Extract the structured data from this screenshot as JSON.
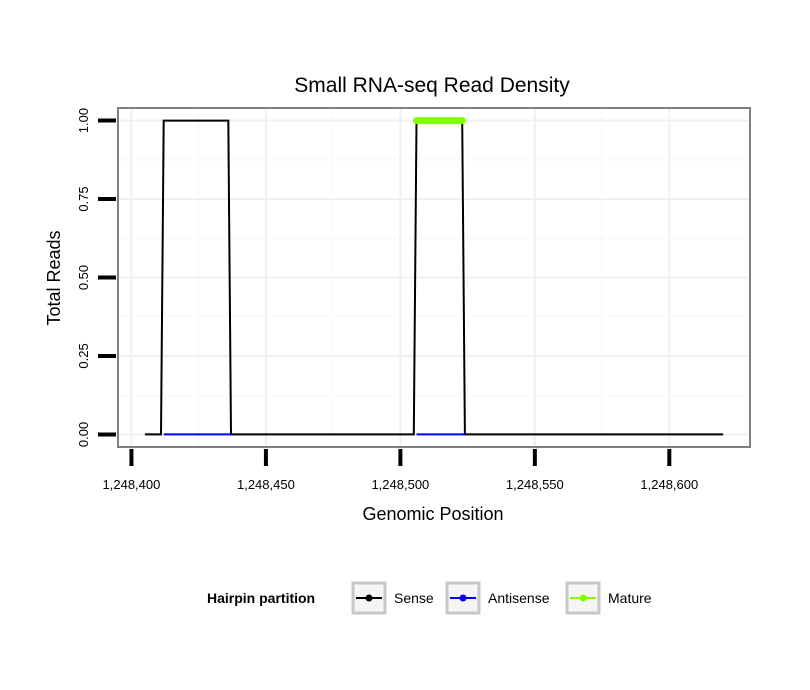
{
  "chart_data": {
    "type": "line",
    "title": "Small RNA-seq Read Density",
    "xlabel": "Genomic Position",
    "ylabel": "Total Reads",
    "xlim": [
      1248395,
      1248630
    ],
    "ylim": [
      -0.04,
      1.04
    ],
    "x_ticks": [
      1248400,
      1248450,
      1248500,
      1248550,
      1248600
    ],
    "x_tick_labels": [
      "1,248,400",
      "1,248,450",
      "1,248,500",
      "1,248,550",
      "1,248,600"
    ],
    "y_ticks": [
      0,
      0.25,
      0.5,
      0.75,
      1.0
    ],
    "y_tick_labels": [
      "0.00",
      "0.25",
      "0.50",
      "0.75",
      "1.00"
    ],
    "grid": true,
    "legend": {
      "title": "Hairpin partition",
      "position": "bottom",
      "entries": [
        {
          "label": "Sense",
          "color": "#000000"
        },
        {
          "label": "Antisense",
          "color": "#0000ff"
        },
        {
          "label": "Mature",
          "color": "#7fff00"
        }
      ]
    },
    "series": [
      {
        "name": "Sense",
        "color": "#000000",
        "x": [
          1248405,
          1248411,
          1248412,
          1248436,
          1248437,
          1248505,
          1248506,
          1248523,
          1248524,
          1248620
        ],
        "y": [
          0,
          0,
          1,
          1,
          0,
          0,
          1,
          1,
          0,
          0
        ]
      },
      {
        "name": "Antisense",
        "color": "#0000ff",
        "x": [
          1248412,
          1248437
        ],
        "y": [
          0,
          0
        ]
      },
      {
        "name": "Antisense",
        "color": "#0000ff",
        "x": [
          1248506,
          1248524
        ],
        "y": [
          0,
          0
        ]
      },
      {
        "name": "Mature",
        "color": "#7fff00",
        "x": [
          1248506,
          1248523
        ],
        "y": [
          1,
          1
        ]
      }
    ]
  }
}
